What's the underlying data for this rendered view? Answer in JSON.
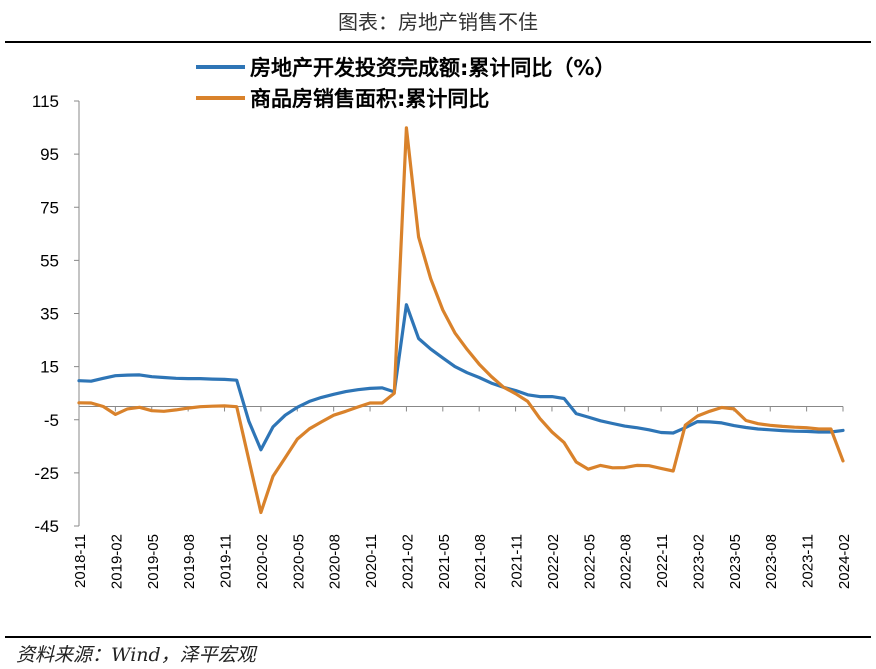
{
  "header": {
    "title": "图表：房地产销售不佳"
  },
  "footer": {
    "source": "资料来源：Wind，泽平宏观"
  },
  "chart_data": {
    "type": "line",
    "title": "",
    "xlabel": "",
    "ylabel": "",
    "ylim": [
      -45,
      115
    ],
    "yticks": [
      115,
      95,
      75,
      55,
      35,
      15,
      -5,
      -25,
      -45
    ],
    "grid": false,
    "legend_position": "top",
    "x": [
      "2018-11",
      "2018-12",
      "2019-01",
      "2019-02",
      "2019-03",
      "2019-04",
      "2019-05",
      "2019-06",
      "2019-07",
      "2019-08",
      "2019-09",
      "2019-10",
      "2019-11",
      "2019-12",
      "2020-01",
      "2020-02",
      "2020-03",
      "2020-04",
      "2020-05",
      "2020-06",
      "2020-07",
      "2020-08",
      "2020-09",
      "2020-10",
      "2020-11",
      "2020-12",
      "2021-01",
      "2021-02",
      "2021-03",
      "2021-04",
      "2021-05",
      "2021-06",
      "2021-07",
      "2021-08",
      "2021-09",
      "2021-10",
      "2021-11",
      "2021-12",
      "2022-01",
      "2022-02",
      "2022-03",
      "2022-04",
      "2022-05",
      "2022-06",
      "2022-07",
      "2022-08",
      "2022-09",
      "2022-10",
      "2022-11",
      "2022-12",
      "2023-01",
      "2023-02",
      "2023-03",
      "2023-04",
      "2023-05",
      "2023-06",
      "2023-07",
      "2023-08",
      "2023-09",
      "2023-10",
      "2023-11",
      "2023-12",
      "2024-01",
      "2024-02"
    ],
    "xtick_labels": [
      "2018-11",
      "2019-02",
      "2019-05",
      "2019-08",
      "2019-11",
      "2020-02",
      "2020-05",
      "2020-08",
      "2020-11",
      "2021-02",
      "2021-05",
      "2021-08",
      "2021-11",
      "2022-02",
      "2022-05",
      "2022-08",
      "2022-11",
      "2023-02",
      "2023-05",
      "2023-08",
      "2023-11",
      "2024-02"
    ],
    "series": [
      {
        "name": "房地产开发投资完成额:累计同比（%）",
        "color": "#2E75B6",
        "values": [
          9.7,
          9.5,
          10.6,
          11.6,
          11.8,
          11.9,
          11.2,
          10.9,
          10.6,
          10.5,
          10.5,
          10.3,
          10.2,
          9.9,
          -5.5,
          -16.3,
          -7.7,
          -3.3,
          -0.3,
          1.9,
          3.4,
          4.6,
          5.6,
          6.3,
          6.8,
          7.0,
          5.5,
          38.3,
          25.6,
          21.6,
          18.3,
          15.0,
          12.7,
          10.9,
          8.8,
          7.2,
          6.0,
          4.4,
          3.7,
          3.7,
          3.0,
          -2.7,
          -4.0,
          -5.4,
          -6.4,
          -7.4,
          -8.0,
          -8.8,
          -9.8,
          -10.0,
          -8.0,
          -5.7,
          -5.8,
          -6.2,
          -7.2,
          -7.9,
          -8.5,
          -8.8,
          -9.1,
          -9.3,
          -9.4,
          -9.6,
          -9.6,
          -9.0
        ]
      },
      {
        "name": "商品房销售面积:累计同比",
        "color": "#D9822B",
        "values": [
          1.4,
          1.3,
          0.0,
          -3.0,
          -0.9,
          -0.3,
          -1.6,
          -1.8,
          -1.3,
          -0.6,
          -0.1,
          0.1,
          0.2,
          -0.1,
          -20.0,
          -39.9,
          -26.3,
          -19.3,
          -12.3,
          -8.4,
          -5.8,
          -3.3,
          -1.8,
          -0.2,
          1.3,
          1.3,
          5.0,
          104.9,
          63.8,
          48.1,
          36.3,
          27.7,
          21.5,
          15.9,
          11.3,
          7.3,
          4.8,
          1.9,
          -4.5,
          -9.6,
          -13.6,
          -20.9,
          -23.6,
          -22.2,
          -23.1,
          -23.0,
          -22.2,
          -22.3,
          -23.3,
          -24.3,
          -7.0,
          -3.6,
          -1.8,
          -0.4,
          -0.9,
          -5.3,
          -6.5,
          -7.1,
          -7.5,
          -7.8,
          -8.0,
          -8.5,
          -8.5,
          -20.5
        ]
      }
    ]
  }
}
